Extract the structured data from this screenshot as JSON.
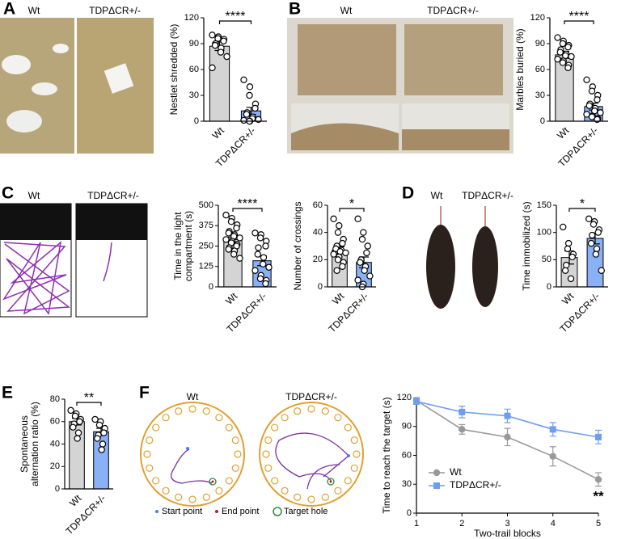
{
  "panels": [
    {
      "letter": "A",
      "labels": [
        "Wt",
        "TDPΔCR+/-"
      ]
    },
    {
      "letter": "B",
      "labels": [
        "Wt",
        "TDPΔCR+/-"
      ]
    },
    {
      "letter": "C",
      "labels": [
        "Wt",
        "TDPΔCR+/-"
      ]
    },
    {
      "letter": "D",
      "labels": [
        "Wt",
        "TDPΔCR+/-"
      ]
    },
    {
      "letter": "E"
    },
    {
      "letter": "F",
      "labels": [
        "Wt",
        "TDPΔCR+/-"
      ],
      "legend": [
        "Start point",
        "End point",
        "Target hole"
      ]
    }
  ],
  "chart_data": [
    {
      "type": "bar",
      "ylabel": [
        "Nestlet shredded (%)"
      ],
      "categories": [
        "Wt",
        "TDPΔCR+/-"
      ],
      "values": [
        87,
        12
      ],
      "errors": [
        5,
        4
      ],
      "points": [
        [
          100,
          98,
          96,
          95,
          93,
          90,
          88,
          85,
          80,
          75,
          62
        ],
        [
          48,
          40,
          30,
          20,
          15,
          10,
          8,
          5,
          3,
          2,
          1,
          0,
          0
        ]
      ],
      "colors": [
        "#d4d4d4",
        "#8ab0f5"
      ],
      "ylim": [
        0,
        120
      ],
      "yticks": [
        0,
        30,
        60,
        90,
        120
      ],
      "significance": "****"
    },
    {
      "type": "bar",
      "ylabel": [
        "Marbles buried (%)"
      ],
      "categories": [
        "Wt",
        "TDPΔCR+/-"
      ],
      "values": [
        77,
        17
      ],
      "errors": [
        4,
        4
      ],
      "points": [
        [
          97,
          93,
          90,
          88,
          86,
          83,
          80,
          78,
          76,
          75,
          72,
          70,
          68,
          65,
          62
        ],
        [
          48,
          40,
          35,
          30,
          25,
          20,
          18,
          15,
          12,
          10,
          8,
          6,
          5,
          3,
          2
        ]
      ],
      "colors": [
        "#d4d4d4",
        "#8ab0f5"
      ],
      "ylim": [
        0,
        120
      ],
      "yticks": [
        0,
        30,
        60,
        90,
        120
      ],
      "significance": "****"
    },
    {
      "type": "bar",
      "ylabel": [
        "Time in the light",
        "compartment (s)"
      ],
      "categories": [
        "Wt",
        "TDPΔCR+/-"
      ],
      "values": [
        290,
        160
      ],
      "errors": [
        15,
        30
      ],
      "points": [
        [
          440,
          420,
          400,
          380,
          360,
          340,
          330,
          320,
          310,
          300,
          290,
          280,
          270,
          260,
          250,
          240,
          230,
          220,
          200,
          175
        ],
        [
          330,
          320,
          300,
          280,
          250,
          240,
          200,
          180,
          140,
          120,
          100,
          70,
          50,
          40,
          20
        ]
      ],
      "colors": [
        "#d4d4d4",
        "#8ab0f5"
      ],
      "ylim": [
        0,
        500
      ],
      "yticks": [
        0,
        125,
        250,
        375,
        500
      ],
      "significance": "****"
    },
    {
      "type": "bar",
      "ylabel": [
        "Number of crossings"
      ],
      "categories": [
        "Wt",
        "TDPΔCR+/-"
      ],
      "values": [
        27,
        18
      ],
      "errors": [
        2.5,
        4
      ],
      "points": [
        [
          50,
          45,
          40,
          35,
          32,
          30,
          28,
          27,
          26,
          25,
          24,
          22,
          20,
          18,
          15,
          12
        ],
        [
          50,
          40,
          35,
          30,
          25,
          20,
          18,
          15,
          12,
          8,
          5,
          2,
          0
        ]
      ],
      "colors": [
        "#d4d4d4",
        "#8ab0f5"
      ],
      "ylim": [
        0,
        60
      ],
      "yticks": [
        0,
        20,
        40,
        60
      ],
      "significance": "*"
    },
    {
      "type": "bar",
      "ylabel": [
        "Time immobilized (s)"
      ],
      "categories": [
        "Wt",
        "TDPΔCR+/-"
      ],
      "values": [
        54,
        89
      ],
      "errors": [
        12,
        10
      ],
      "points": [
        [
          110,
          80,
          70,
          60,
          55,
          40,
          30,
          15
        ],
        [
          125,
          120,
          115,
          105,
          100,
          95,
          80,
          70,
          60,
          30
        ]
      ],
      "colors": [
        "#d4d4d4",
        "#8ab0f5"
      ],
      "ylim": [
        0,
        150
      ],
      "yticks": [
        0,
        50,
        100,
        150
      ],
      "significance": "*"
    },
    {
      "type": "bar",
      "ylabel": [
        "Spontaneous",
        "alternation ratio (%)"
      ],
      "categories": [
        "Wt",
        "TDPΔCR+/-"
      ],
      "values": [
        60,
        51
      ],
      "errors": [
        3,
        3
      ],
      "points": [
        [
          70,
          67,
          65,
          62,
          60,
          58,
          55,
          50,
          45
        ],
        [
          62,
          60,
          57,
          54,
          50,
          48,
          45,
          40,
          35
        ]
      ],
      "colors": [
        "#d4d4d4",
        "#8ab0f5"
      ],
      "ylim": [
        0,
        80
      ],
      "yticks": [
        0,
        20,
        40,
        60,
        80
      ],
      "significance": "**"
    },
    {
      "type": "line",
      "xlabel": "Two-trail blocks",
      "ylabel": [
        "Time to reach the target (s)"
      ],
      "x": [
        1,
        2,
        3,
        4,
        5
      ],
      "series": [
        {
          "name": "Wt",
          "color": "#999999",
          "marker": "circle",
          "values": [
            117,
            87,
            79,
            59,
            35
          ],
          "errors": [
            3,
            5,
            9,
            10,
            7
          ]
        },
        {
          "name": "TDPΔCR+/-",
          "color": "#6f9ef0",
          "marker": "square",
          "values": [
            116,
            105,
            101,
            87,
            79
          ],
          "errors": [
            3,
            6,
            7,
            7,
            7
          ]
        }
      ],
      "xlim": [
        1,
        5
      ],
      "xticks": [
        1,
        2,
        3,
        4,
        5
      ],
      "ylim": [
        0,
        120
      ],
      "yticks": [
        0,
        30,
        60,
        90,
        120
      ],
      "legend": "lower-left",
      "annotation": "**"
    }
  ]
}
